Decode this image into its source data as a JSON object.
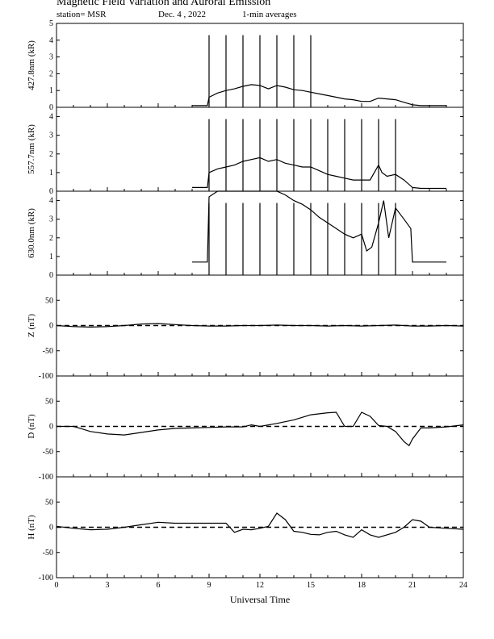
{
  "header": {
    "title": "Magnetic Field Variation and Auroral Emission",
    "station": "station= MSR",
    "date": "Dec. 4  , 2022",
    "averaging": "1-min averages"
  },
  "chart_data": [
    {
      "type": "line",
      "ylabel": "427.8nm (kR)",
      "ylim": [
        0,
        5
      ],
      "yticks": [
        0,
        1,
        2,
        3,
        4,
        5
      ],
      "x": [
        8,
        8.9,
        9.0,
        9.5,
        10,
        10.5,
        11,
        11.5,
        12,
        12.5,
        13,
        13.5,
        14,
        14.5,
        15,
        15.5,
        16,
        16.5,
        17,
        17.5,
        18,
        18.5,
        19,
        19.5,
        20,
        20.5,
        21,
        21.5,
        22,
        22.5,
        23
      ],
      "values": [
        0.1,
        0.1,
        0.6,
        0.85,
        1.0,
        1.1,
        1.25,
        1.35,
        1.3,
        1.1,
        1.3,
        1.2,
        1.05,
        1.0,
        0.9,
        0.8,
        0.7,
        0.6,
        0.5,
        0.45,
        0.35,
        0.35,
        0.55,
        0.5,
        0.45,
        0.3,
        0.15,
        0.1,
        0.1,
        0.1,
        0.1
      ],
      "spikes": [
        9,
        10,
        11,
        12,
        13,
        14,
        15
      ]
    },
    {
      "type": "line",
      "ylabel": "557.7nm (kR)",
      "ylim": [
        0,
        4.5
      ],
      "yticks": [
        0,
        1,
        2,
        3,
        4
      ],
      "x": [
        8,
        8.9,
        9.0,
        9.5,
        10,
        10.5,
        11,
        11.5,
        12,
        12.5,
        13,
        13.5,
        14,
        14.5,
        15,
        15.5,
        16,
        16.5,
        17,
        17.5,
        18,
        18.5,
        19,
        19.2,
        19.5,
        20,
        20.5,
        21,
        21.5,
        22,
        22.5,
        23
      ],
      "values": [
        0.2,
        0.2,
        1.0,
        1.2,
        1.3,
        1.4,
        1.6,
        1.7,
        1.8,
        1.6,
        1.7,
        1.5,
        1.4,
        1.3,
        1.3,
        1.1,
        0.9,
        0.8,
        0.7,
        0.6,
        0.6,
        0.6,
        1.4,
        1.0,
        0.8,
        0.9,
        0.6,
        0.2,
        0.15,
        0.15,
        0.15,
        0.15
      ],
      "spikes": [
        9,
        10,
        11,
        12,
        13,
        14,
        15,
        16,
        17,
        18,
        19,
        20
      ]
    },
    {
      "type": "line",
      "ylabel": "630.0nm (kR)",
      "ylim": [
        0,
        4.5
      ],
      "yticks": [
        0,
        1,
        2,
        3,
        4
      ],
      "x": [
        8,
        8.9,
        9.0,
        9.5,
        10,
        10.5,
        11,
        11.5,
        12,
        12.5,
        13,
        13.5,
        14,
        14.5,
        15,
        15.5,
        16,
        16.5,
        17,
        17.5,
        18,
        18.3,
        18.6,
        19,
        19.3,
        19.6,
        20,
        20.5,
        20.9,
        21,
        21.5,
        22,
        22.5,
        23
      ],
      "values": [
        0.7,
        0.7,
        4.2,
        4.5,
        4.5,
        4.5,
        4.5,
        4.5,
        4.5,
        4.5,
        4.5,
        4.3,
        4.0,
        3.8,
        3.5,
        3.1,
        2.8,
        2.5,
        2.2,
        2.0,
        2.2,
        1.3,
        1.5,
        2.8,
        4.0,
        2.0,
        3.6,
        3.0,
        2.5,
        0.7,
        0.7,
        0.7,
        0.7,
        0.7
      ],
      "spikes": [
        9,
        10,
        11,
        12,
        13,
        14,
        15,
        16,
        17,
        18,
        19,
        20
      ]
    },
    {
      "type": "line",
      "ylabel": "Z (nT)",
      "ylim": [
        -100,
        100
      ],
      "yticks": [
        -100,
        -50,
        0,
        50
      ],
      "x": [
        0,
        1,
        2,
        3,
        4,
        5,
        6,
        7,
        8,
        9,
        10,
        11,
        12,
        13,
        14,
        15,
        16,
        17,
        18,
        19,
        20,
        21,
        22,
        23,
        24
      ],
      "values": [
        0,
        -2,
        -3,
        -2,
        0,
        3,
        4,
        2,
        0,
        -1,
        -1,
        0,
        0,
        1,
        0,
        0,
        -1,
        0,
        -1,
        0,
        1,
        -1,
        -1,
        0,
        -1
      ]
    },
    {
      "type": "line",
      "ylabel": "D (nT)",
      "ylim": [
        -100,
        100
      ],
      "yticks": [
        -100,
        -50,
        0,
        50
      ],
      "x": [
        0,
        1,
        1.5,
        2,
        3,
        4,
        5,
        6,
        7,
        8,
        9,
        10,
        11,
        11.5,
        12,
        13,
        14,
        15,
        16,
        16.5,
        17,
        17.5,
        18,
        18.5,
        19,
        19.5,
        20,
        20.5,
        20.8,
        21,
        21.5,
        22,
        23,
        24
      ],
      "values": [
        0,
        0,
        -5,
        -10,
        -15,
        -17,
        -12,
        -7,
        -4,
        -3,
        -2,
        -1,
        -1,
        3,
        0,
        6,
        13,
        23,
        27,
        28,
        0,
        0,
        28,
        20,
        2,
        0,
        -10,
        -30,
        -38,
        -25,
        -3,
        -3,
        -1,
        3
      ]
    },
    {
      "type": "line",
      "ylabel": "H (nT)",
      "ylim": [
        -100,
        100
      ],
      "yticks": [
        -100,
        -50,
        0,
        50
      ],
      "x": [
        0,
        1,
        2,
        3,
        4,
        5,
        6,
        7,
        8,
        9,
        10,
        10.5,
        11,
        11.5,
        12,
        12.5,
        13,
        13.5,
        14,
        14.5,
        15,
        15.5,
        16,
        16.5,
        17,
        17.5,
        18,
        18.5,
        19,
        20,
        20.5,
        21,
        21.5,
        22,
        23,
        24
      ],
      "values": [
        2,
        -2,
        -5,
        -4,
        0,
        5,
        10,
        8,
        8,
        8,
        8,
        -10,
        -4,
        -5,
        -2,
        2,
        28,
        15,
        -8,
        -10,
        -14,
        -15,
        -10,
        -8,
        -15,
        -20,
        -5,
        -15,
        -20,
        -10,
        0,
        15,
        12,
        0,
        -2,
        -4
      ]
    }
  ],
  "x_axis": {
    "label": "Universal Time",
    "xlim": [
      0,
      24
    ],
    "ticks": [
      "0",
      "3",
      "6",
      "9",
      "12",
      "15",
      "18",
      "21",
      "24"
    ]
  }
}
